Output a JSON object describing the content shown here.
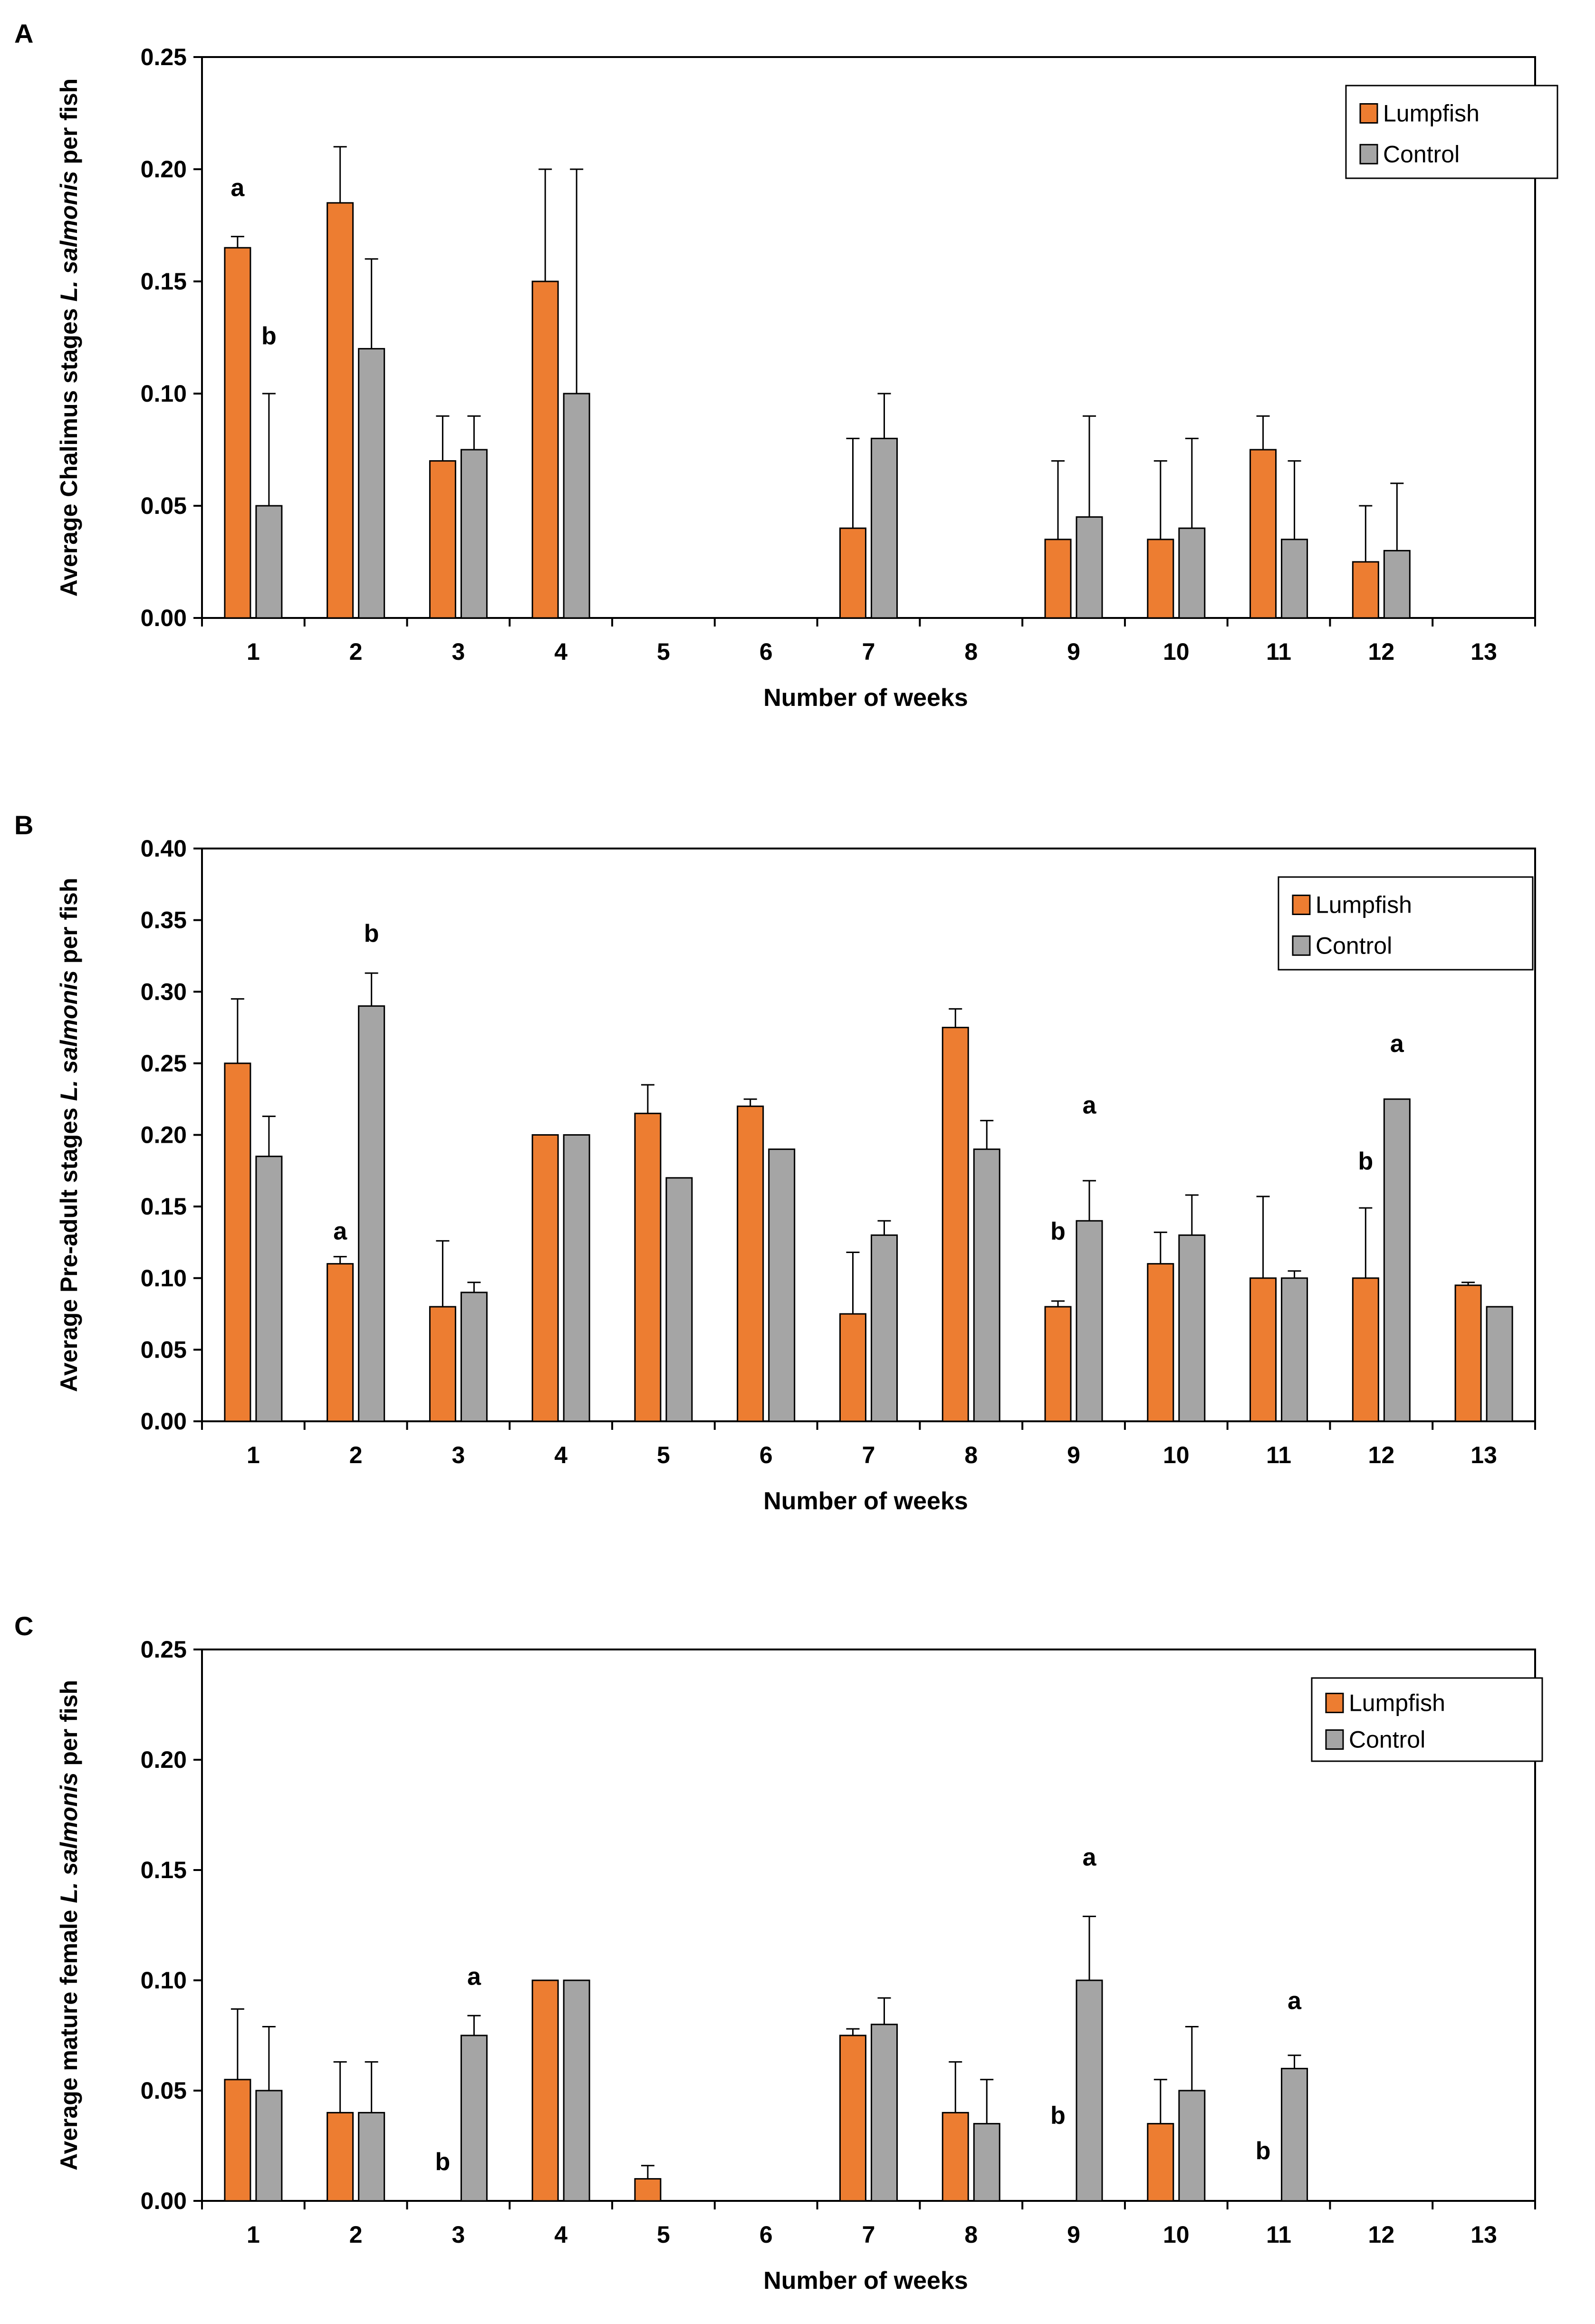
{
  "colors": {
    "lumpfish": "#ED7D31",
    "control": "#A5A5A5",
    "axis": "#000000"
  },
  "chart_data": [
    {
      "panel_label": "A",
      "type": "bar",
      "xlabel": "Number of weeks",
      "ylabel_parts": [
        "Average Chalimus stages ",
        "L. salmonis",
        " per fish"
      ],
      "ylim": [
        0,
        0.25
      ],
      "yticks": [
        "0.00",
        "0.05",
        "0.10",
        "0.15",
        "0.20",
        "0.25"
      ],
      "categories": [
        "1",
        "2",
        "3",
        "4",
        "5",
        "6",
        "7",
        "8",
        "9",
        "10",
        "11",
        "12",
        "13"
      ],
      "legend": [
        "Lumpfish",
        "Control"
      ],
      "series": [
        {
          "name": "Lumpfish",
          "values": [
            0.165,
            0.185,
            0.07,
            0.15,
            0,
            0,
            0.04,
            0,
            0.035,
            0.035,
            0.075,
            0.025,
            0
          ],
          "errors": [
            0.005,
            0.025,
            0.02,
            0.05,
            0,
            0,
            0.04,
            0,
            0.035,
            0.035,
            0.015,
            0.025,
            0
          ]
        },
        {
          "name": "Control",
          "values": [
            0.05,
            0.12,
            0.075,
            0.1,
            0,
            0,
            0.08,
            0,
            0.045,
            0.04,
            0.035,
            0.03,
            0
          ],
          "errors": [
            0.05,
            0.04,
            0.015,
            0.1,
            0,
            0,
            0.02,
            0,
            0.045,
            0.04,
            0.035,
            0.03,
            0
          ]
        }
      ],
      "annotations": [
        {
          "text": "a",
          "category": "1",
          "series": 0,
          "y": 0.188
        },
        {
          "text": "b",
          "category": "1",
          "series": 1,
          "y": 0.122
        }
      ]
    },
    {
      "panel_label": "B",
      "type": "bar",
      "xlabel": "Number of weeks",
      "ylabel_parts": [
        "Average Pre-adult stages ",
        "L. salmonis",
        " per fish"
      ],
      "ylim": [
        0,
        0.4
      ],
      "yticks": [
        "0.00",
        "0.05",
        "0.10",
        "0.15",
        "0.20",
        "0.25",
        "0.30",
        "0.35",
        "0.40"
      ],
      "categories": [
        "1",
        "2",
        "3",
        "4",
        "5",
        "6",
        "7",
        "8",
        "9",
        "10",
        "11",
        "12",
        "13"
      ],
      "legend": [
        "Lumpfish",
        "Control"
      ],
      "series": [
        {
          "name": "Lumpfish",
          "values": [
            0.25,
            0.11,
            0.08,
            0.2,
            0.215,
            0.22,
            0.075,
            0.275,
            0.08,
            0.11,
            0.1,
            0.1,
            0.095
          ],
          "errors": [
            0.045,
            0.005,
            0.046,
            0,
            0.02,
            0.005,
            0.043,
            0.013,
            0.004,
            0.022,
            0.057,
            0.049,
            0.002
          ]
        },
        {
          "name": "Control",
          "values": [
            0.185,
            0.29,
            0.09,
            0.2,
            0.17,
            0.19,
            0.13,
            0.19,
            0.14,
            0.13,
            0.1,
            0.225,
            0.08
          ],
          "errors": [
            0.028,
            0.023,
            0.007,
            0,
            0,
            0,
            0.01,
            0.02,
            0.028,
            0.028,
            0.005,
            0,
            0
          ]
        }
      ],
      "annotations": [
        {
          "text": "b",
          "category": "2",
          "series": 1,
          "y": 0.335
        },
        {
          "text": "a",
          "category": "2",
          "series": 0,
          "y": 0.127
        },
        {
          "text": "a",
          "category": "9",
          "series": 1,
          "y": 0.215
        },
        {
          "text": "b",
          "category": "9",
          "series": 0,
          "y": 0.127
        },
        {
          "text": "a",
          "category": "12",
          "series": 1,
          "y": 0.258
        },
        {
          "text": "b",
          "category": "12",
          "series": 0,
          "y": 0.176
        }
      ]
    },
    {
      "panel_label": "C",
      "type": "bar",
      "xlabel": "Number of weeks",
      "ylabel_parts": [
        "Average mature female ",
        "L. salmonis",
        " per fish"
      ],
      "ylim": [
        0,
        0.25
      ],
      "yticks": [
        "0.00",
        "0.05",
        "0.10",
        "0.15",
        "0.20",
        "0.25"
      ],
      "categories": [
        "1",
        "2",
        "3",
        "4",
        "5",
        "6",
        "7",
        "8",
        "9",
        "10",
        "11",
        "12",
        "13"
      ],
      "legend": [
        "Lumpfish",
        "Control"
      ],
      "series": [
        {
          "name": "Lumpfish",
          "values": [
            0.055,
            0.04,
            0,
            0.1,
            0.01,
            0,
            0.075,
            0.04,
            0,
            0.035,
            0,
            0,
            0
          ],
          "errors": [
            0.032,
            0.023,
            0,
            0,
            0.006,
            0,
            0.003,
            0.023,
            0,
            0.02,
            0,
            0,
            0
          ]
        },
        {
          "name": "Control",
          "values": [
            0.05,
            0.04,
            0.075,
            0.1,
            0,
            0,
            0.08,
            0.035,
            0.1,
            0.05,
            0.06,
            0,
            0
          ],
          "errors": [
            0.029,
            0.023,
            0.009,
            0,
            0,
            0,
            0.012,
            0.02,
            0.029,
            0.029,
            0.006,
            0,
            0
          ]
        }
      ],
      "annotations": [
        {
          "text": "a",
          "category": "3",
          "series": 1,
          "y": 0.098
        },
        {
          "text": "b",
          "category": "3",
          "series": 0,
          "y": 0.014
        },
        {
          "text": "a",
          "category": "9",
          "series": 1,
          "y": 0.152
        },
        {
          "text": "b",
          "category": "9",
          "series": 0,
          "y": 0.035
        },
        {
          "text": "a",
          "category": "11",
          "series": 1,
          "y": 0.087
        },
        {
          "text": "b",
          "category": "11",
          "series": 0,
          "y": 0.019
        }
      ]
    }
  ]
}
